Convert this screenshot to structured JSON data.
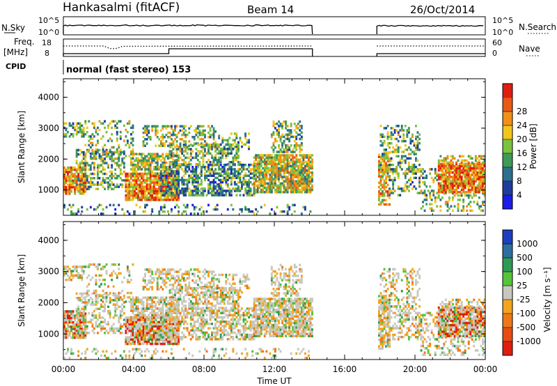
{
  "header": {
    "station": "Hankasalmi (fitACF)",
    "beam": "Beam 14",
    "date": "26/Oct/2014"
  },
  "strip_labels": {
    "nsky": "N.Sky",
    "nsky_ticks": [
      "10^5",
      "10^0"
    ],
    "nsearch": "N.Search",
    "nsearch_ticks": [
      "10^5",
      "10^0"
    ],
    "freq_line1": "Freq.",
    "freq_line2": "[MHz]",
    "freq_ticks": [
      "18",
      "8"
    ],
    "nave": "Nave",
    "nave_ticks": [
      "60",
      "0"
    ],
    "cpid": "CPID",
    "cpid_text": "normal (fast stereo) 153"
  },
  "power_scale": {
    "title": "Power [dB]",
    "ticks": [
      "4",
      "8",
      "12",
      "16",
      "20",
      "24",
      "28"
    ],
    "colors": [
      "#1c1ce6",
      "#1e3c9e",
      "#2c6f8f",
      "#3f9a57",
      "#7cc13f",
      "#f2c51c",
      "#f0901a",
      "#e85a14",
      "#e01e10"
    ]
  },
  "velocity_scale": {
    "title": "Velocity [m s⁻¹]",
    "ticks": [
      "1000",
      "500",
      "100",
      "25",
      "-25",
      "-100",
      "-500",
      "-1000"
    ],
    "colors": [
      "#1d3fbf",
      "#2f6d9e",
      "#2f9a54",
      "#55c43a",
      "#c8c8c0",
      "#f2a51c",
      "#ee7818",
      "#e84c14",
      "#e01e10"
    ]
  },
  "colors": {
    "frame": "#000000",
    "no_data": "#ffffff",
    "ground_scatter": "#c8c8c0"
  },
  "chart_data": [
    {
      "type": "heatmap",
      "title": "",
      "ylabel": "Slant Range [km]",
      "ylim": [
        180,
        4600
      ],
      "yticks": [
        "1000",
        "2000",
        "3000",
        "4000"
      ],
      "x_range": [
        "00:00",
        "24:00"
      ],
      "data_gap": [
        "14:10",
        "17:50"
      ],
      "scatter_regions": [
        {
          "from": "00:00",
          "to": "14:10",
          "range_km": [
            600,
            3200
          ],
          "power_db": [
            4,
            30
          ]
        },
        {
          "from": "17:50",
          "to": "24:00",
          "range_km": [
            200,
            3200
          ],
          "power_db": [
            4,
            30
          ]
        }
      ]
    },
    {
      "type": "heatmap",
      "title": "",
      "ylabel": "Slant Range [km]",
      "xlabel": "Time UT",
      "ylim": [
        180,
        4600
      ],
      "yticks": [
        "1000",
        "2000",
        "3000",
        "4000"
      ],
      "xticks": [
        "00:00",
        "04:00",
        "08:00",
        "12:00",
        "16:00",
        "20:00",
        "00:00"
      ],
      "data_gap": [
        "14:10",
        "17:50"
      ],
      "scatter_regions": [
        {
          "from": "00:00",
          "to": "14:10",
          "range_km": [
            600,
            3200
          ],
          "velocity_ms": [
            -500,
            500
          ]
        },
        {
          "from": "17:50",
          "to": "24:00",
          "range_km": [
            200,
            3200
          ],
          "velocity_ms": [
            -500,
            500
          ]
        }
      ]
    }
  ]
}
